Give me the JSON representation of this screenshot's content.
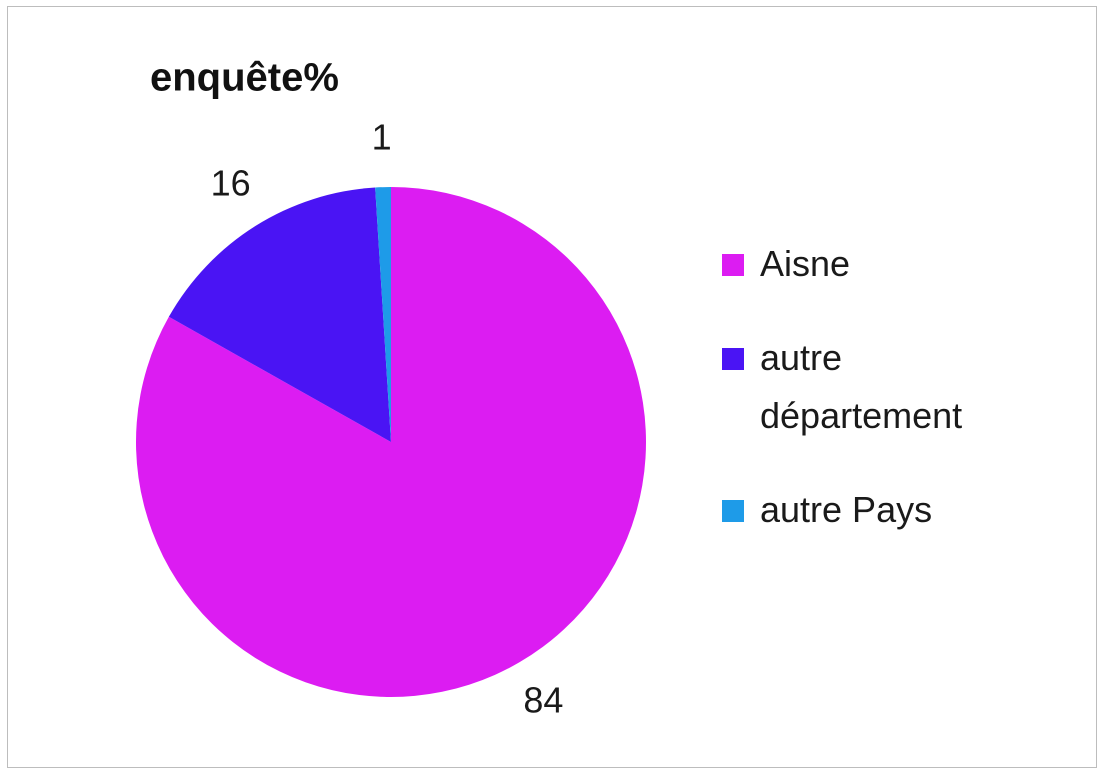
{
  "chart_data": {
    "type": "pie",
    "title": "enquête%",
    "categories": [
      "Aisne",
      "autre département",
      "autre Pays"
    ],
    "values": [
      84,
      16,
      1
    ],
    "colors": [
      "#dc1cf2",
      "#4a14f4",
      "#1e9be8"
    ],
    "legend": "right"
  }
}
